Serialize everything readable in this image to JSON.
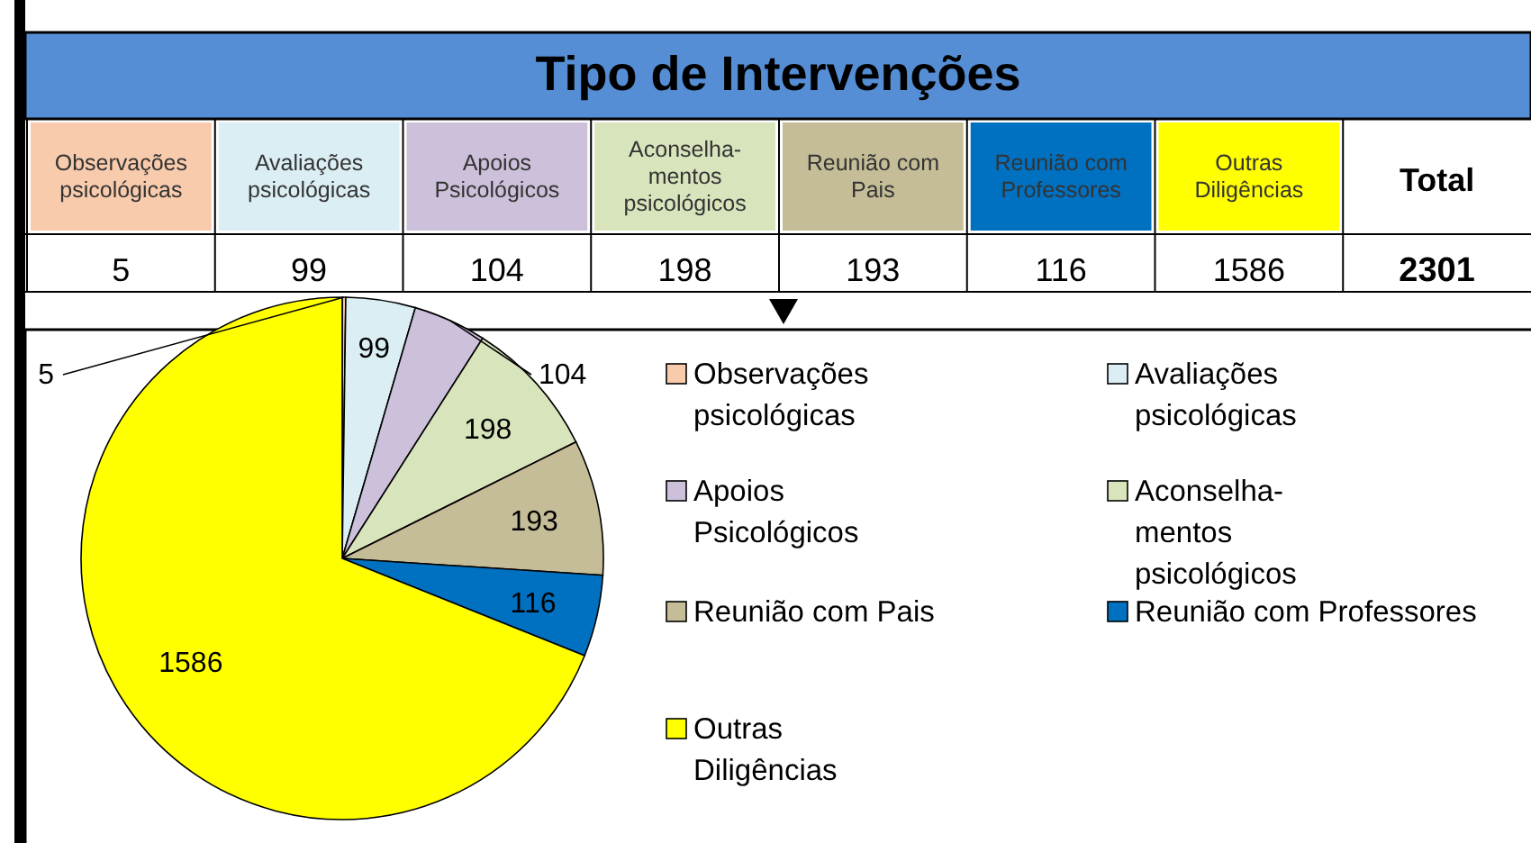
{
  "chart_data": [
    {
      "type": "other",
      "title": "Tipo de Intervenções",
      "categories": [
        "Observações psicológicas",
        "Avaliações psicológicas",
        "Apoios Psicológicos",
        "Aconselha-mentos psicológicos",
        "Reunião com Pais",
        "Reunião com Professores",
        "Outras Diligências"
      ],
      "colors": [
        "#f8cbad",
        "#daeef3",
        "#ccc0da",
        "#d8e4bc",
        "#c4bd97",
        "#0070c0",
        "#ffff00"
      ],
      "annotations": [
        "5",
        "99",
        "104",
        "198",
        "193",
        "116",
        "1586",
        "Total",
        "2301"
      ]
    },
    {
      "type": "pie",
      "categories": [
        "Observações psicológicas",
        "Avaliações psicológicas",
        "Apoios Psicológicos",
        "Aconselha-mentos psicológicos",
        "Reunião com Pais",
        "Reunião com Professores",
        "Outras Diligências"
      ],
      "values": [
        5,
        99,
        104,
        198,
        193,
        116,
        1586
      ],
      "colors": [
        "#f8cbad",
        "#daeef3",
        "#ccc0da",
        "#d8e4bc",
        "#c4bd97",
        "#0070c0",
        "#ffff00"
      ],
      "data_labels": true,
      "legend": "right"
    }
  ]
}
